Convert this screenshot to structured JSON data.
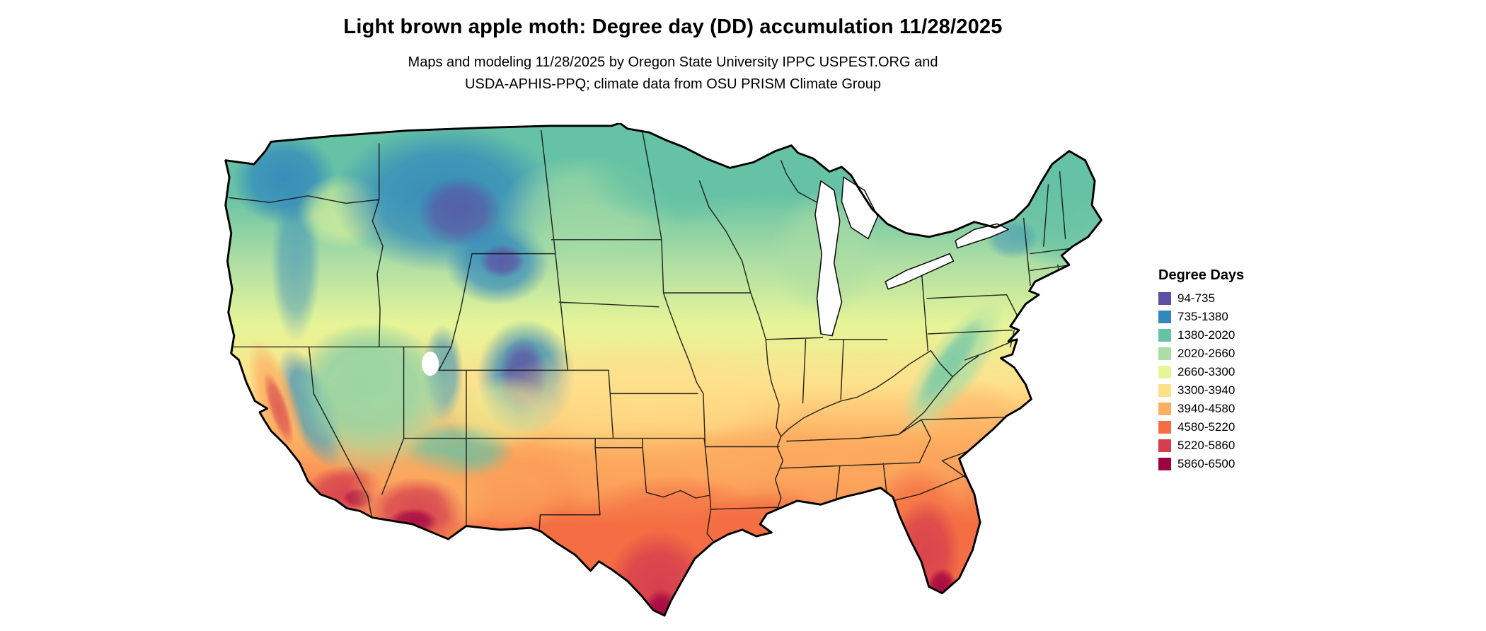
{
  "header": {
    "title": "Light brown apple moth: Degree day (DD) accumulation 11/28/2025",
    "subtitle_line1": "Maps and modeling 11/28/2025 by Oregon State University IPPC USPEST.ORG and",
    "subtitle_line2": "USDA-APHIS-PPQ; climate data from OSU PRISM Climate Group"
  },
  "legend": {
    "title": "Degree Days",
    "items": [
      {
        "label": "94-735",
        "color": "#5e4fa2"
      },
      {
        "label": "735-1380",
        "color": "#3288bd"
      },
      {
        "label": "1380-2020",
        "color": "#66c2a5"
      },
      {
        "label": "2020-2660",
        "color": "#abdda4"
      },
      {
        "label": "2660-3300",
        "color": "#e6f598"
      },
      {
        "label": "3300-3940",
        "color": "#fee08b"
      },
      {
        "label": "3940-4580",
        "color": "#fdae61"
      },
      {
        "label": "4580-5220",
        "color": "#f46d43"
      },
      {
        "label": "5220-5860",
        "color": "#d53e4f"
      },
      {
        "label": "5860-6500",
        "color": "#9e0142"
      }
    ]
  },
  "map": {
    "region": "Continental United States",
    "border_color": "#000000",
    "background_color": "#ffffff"
  }
}
